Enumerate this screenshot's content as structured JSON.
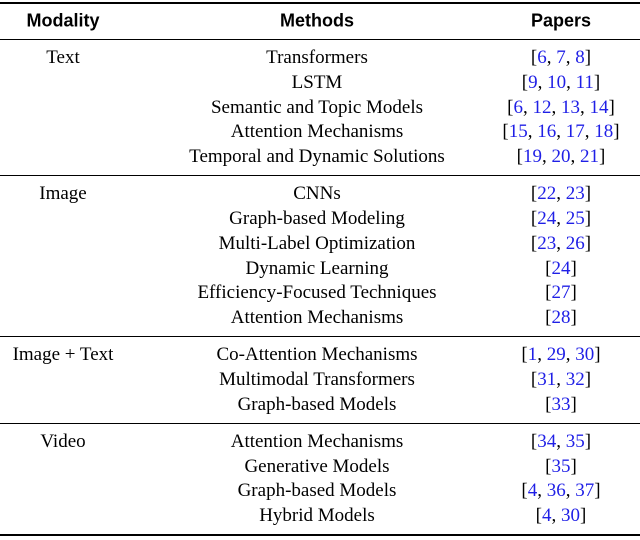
{
  "table": {
    "header": [
      "Modality",
      "Methods",
      "Papers"
    ],
    "groups": [
      {
        "modality": "Text",
        "rows": [
          {
            "method": "Transformers",
            "papers": [
              6,
              7,
              8
            ]
          },
          {
            "method": "LSTM",
            "papers": [
              9,
              10,
              11
            ]
          },
          {
            "method": "Semantic and Topic Models",
            "papers": [
              6,
              12,
              13,
              14
            ]
          },
          {
            "method": "Attention Mechanisms",
            "papers": [
              15,
              16,
              17,
              18
            ]
          },
          {
            "method": "Temporal and Dynamic Solutions",
            "papers": [
              19,
              20,
              21
            ]
          }
        ]
      },
      {
        "modality": "Image",
        "rows": [
          {
            "method": "CNNs",
            "papers": [
              22,
              23
            ]
          },
          {
            "method": "Graph-based Modeling",
            "papers": [
              24,
              25
            ]
          },
          {
            "method": "Multi-Label Optimization",
            "papers": [
              23,
              26
            ]
          },
          {
            "method": "Dynamic Learning",
            "papers": [
              24
            ]
          },
          {
            "method": "Efficiency-Focused Techniques",
            "papers": [
              27
            ]
          },
          {
            "method": "Attention Mechanisms",
            "papers": [
              28
            ]
          }
        ]
      },
      {
        "modality": "Image + Text",
        "rows": [
          {
            "method": "Co-Attention Mechanisms",
            "papers": [
              1,
              29,
              30
            ]
          },
          {
            "method": "Multimodal Transformers",
            "papers": [
              31,
              32
            ]
          },
          {
            "method": "Graph-based Models",
            "papers": [
              33
            ]
          }
        ]
      },
      {
        "modality": "Video",
        "rows": [
          {
            "method": "Attention Mechanisms",
            "papers": [
              34,
              35
            ]
          },
          {
            "method": "Generative Models",
            "papers": [
              35
            ]
          },
          {
            "method": "Graph-based Models",
            "papers": [
              4,
              36,
              37
            ]
          },
          {
            "method": "Hybrid Models",
            "papers": [
              4,
              30
            ]
          }
        ]
      }
    ]
  }
}
